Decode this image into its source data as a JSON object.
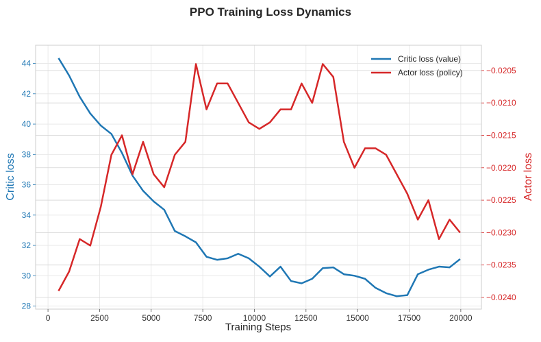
{
  "colors": {
    "critic": "#1f77b4",
    "actor": "#d62728",
    "grid": "#e6e6e6",
    "frame": "#cccccc",
    "text": "#262626"
  },
  "chart_data": {
    "type": "line",
    "title": "PPO Training Loss Dynamics",
    "xlabel": "Training Steps",
    "ylabel_left": "Critic loss",
    "ylabel_right": "Actor loss",
    "xlim": [
      -600,
      21000
    ],
    "ylim_left": [
      27.8,
      45.2
    ],
    "ylim_right": [
      -0.02418,
      -0.02011
    ],
    "x_ticks": [
      0,
      2500,
      5000,
      7500,
      10000,
      12500,
      15000,
      17500,
      20000
    ],
    "x_tick_labels": [
      "0",
      "2500",
      "5000",
      "7500",
      "10000",
      "12500",
      "15000",
      "17500",
      "20000"
    ],
    "y_ticks_left": [
      28,
      30,
      32,
      34,
      36,
      38,
      40,
      42,
      44
    ],
    "y_tick_labels_left": [
      "28",
      "30",
      "32",
      "34",
      "36",
      "38",
      "40",
      "42",
      "44"
    ],
    "y_ticks_right": [
      -0.024,
      -0.0235,
      -0.023,
      -0.0225,
      -0.022,
      -0.0215,
      -0.021,
      -0.0205
    ],
    "y_tick_labels_right": [
      "−0.0240",
      "−0.0235",
      "−0.0230",
      "−0.0225",
      "−0.0220",
      "−0.0215",
      "−0.0210",
      "−0.0205"
    ],
    "grid": true,
    "legend_position": "top-right",
    "x": [
      512,
      1024,
      1536,
      2048,
      2560,
      3072,
      3584,
      4096,
      4608,
      5120,
      5632,
      6144,
      6656,
      7168,
      7680,
      8192,
      8704,
      9216,
      9728,
      10240,
      10752,
      11264,
      11776,
      12288,
      12800,
      13312,
      13824,
      14336,
      14848,
      15360,
      15872,
      16384,
      16896,
      17408,
      17920,
      18432,
      18944,
      19456,
      19968
    ],
    "series": [
      {
        "name": "Critic loss (value)",
        "axis": "left",
        "values": [
          44.35,
          43.2,
          41.8,
          40.7,
          39.9,
          39.35,
          38.1,
          36.6,
          35.6,
          34.9,
          34.35,
          32.95,
          32.6,
          32.2,
          31.25,
          31.05,
          31.15,
          31.45,
          31.15,
          30.6,
          29.95,
          30.6,
          29.65,
          29.5,
          29.8,
          30.5,
          30.55,
          30.1,
          30.0,
          29.8,
          29.2,
          28.85,
          28.65,
          28.72,
          30.1,
          30.4,
          30.6,
          30.55,
          31.1
        ]
      },
      {
        "name": "Actor loss (policy)",
        "axis": "right",
        "values": [
          -0.0239,
          -0.0236,
          -0.0231,
          -0.0232,
          -0.0226,
          -0.0218,
          -0.0215,
          -0.0221,
          -0.0216,
          -0.0221,
          -0.0223,
          -0.0218,
          -0.0216,
          -0.0204,
          -0.0211,
          -0.0207,
          -0.0207,
          -0.021,
          -0.0213,
          -0.0214,
          -0.0213,
          -0.0211,
          -0.0211,
          -0.0207,
          -0.021,
          -0.0204,
          -0.0206,
          -0.0216,
          -0.022,
          -0.0217,
          -0.0217,
          -0.0218,
          -0.0221,
          -0.0224,
          -0.0228,
          -0.0225,
          -0.0231,
          -0.0228,
          -0.023
        ]
      }
    ]
  }
}
